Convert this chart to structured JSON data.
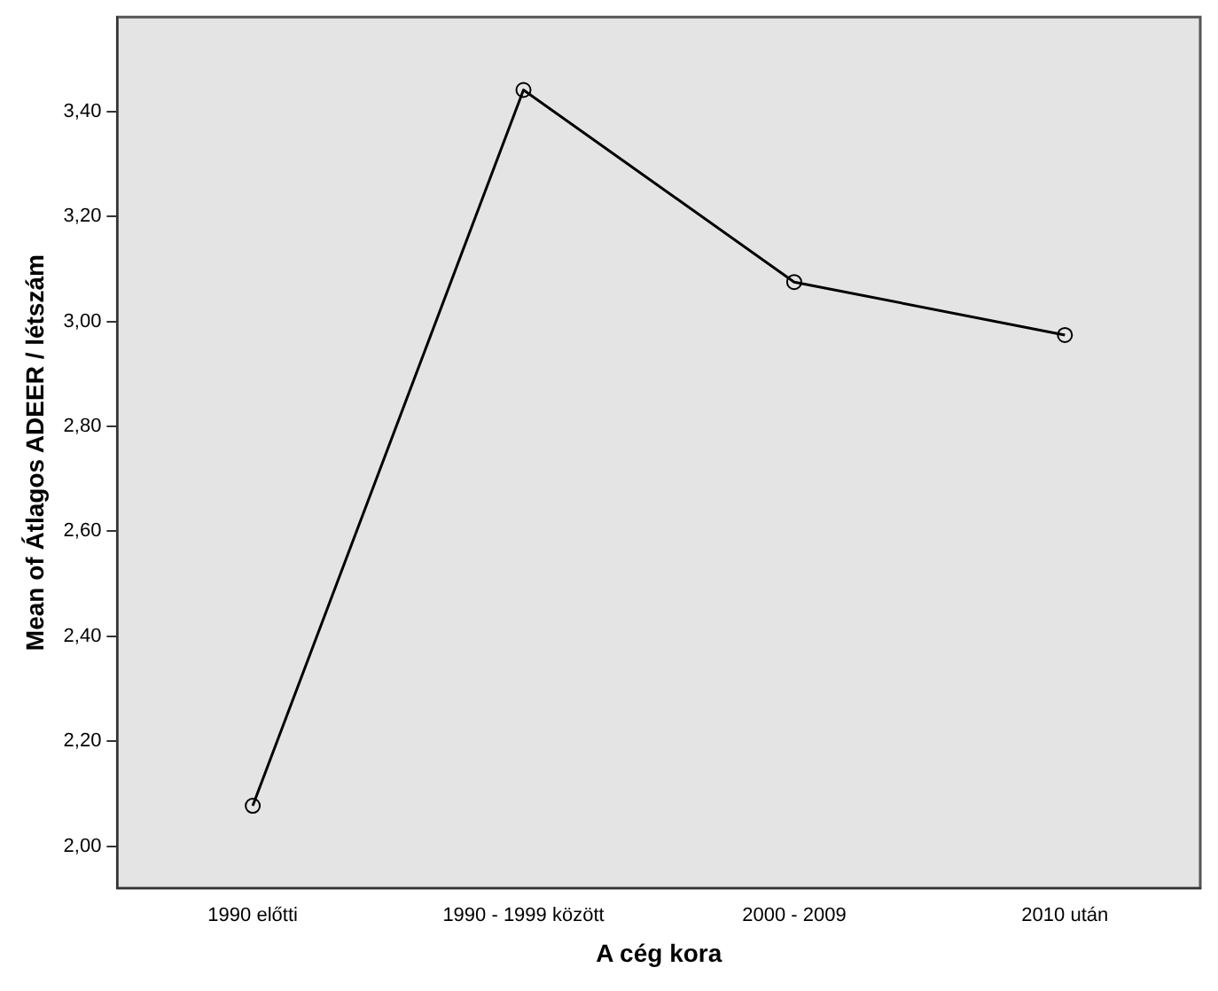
{
  "chart_data": {
    "type": "line",
    "xlabel": "A cég kora",
    "ylabel": "Mean of Átlagos ADEER / létszám",
    "categories": [
      "1990 előtti",
      "1990 - 1999 között",
      "2000 - 2009",
      "2010 után"
    ],
    "series": [
      {
        "color": "#000000",
        "values": [
          2.077,
          3.441,
          3.075,
          2.974
        ]
      }
    ],
    "ylim": [
      1.92,
      3.58
    ],
    "yticks": [
      {
        "value": 2.0,
        "label": "2,00"
      },
      {
        "value": 2.2,
        "label": "2,20"
      },
      {
        "value": 2.4,
        "label": "2,40"
      },
      {
        "value": 2.6,
        "label": "2,60"
      },
      {
        "value": 2.8,
        "label": "2,80"
      },
      {
        "value": 3.0,
        "label": "3,00"
      },
      {
        "value": 3.2,
        "label": "3,20"
      },
      {
        "value": 3.4,
        "label": "3,40"
      }
    ],
    "grid": false,
    "legend": false,
    "marker": "circle",
    "line_style": "solid"
  }
}
